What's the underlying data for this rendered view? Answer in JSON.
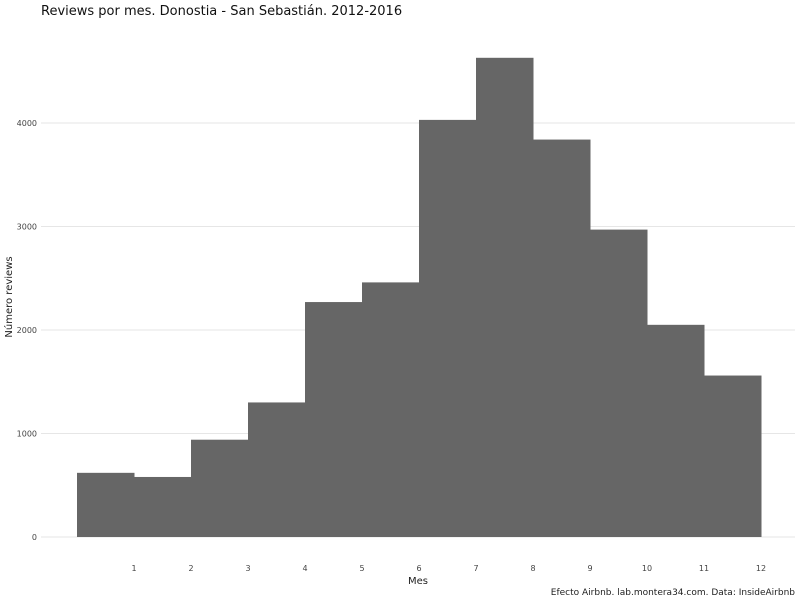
{
  "chart_data": {
    "type": "bar",
    "title": "Reviews por mes. Donostia - San Sebastián. 2012-2016",
    "xlabel": "Mes",
    "ylabel": "Número reviews",
    "caption": "Efecto Airbnb. lab.montera34.com. Data: InsideAirbnb",
    "x_ticks": [
      "1",
      "2",
      "3",
      "4",
      "5",
      "6",
      "7",
      "8",
      "9",
      "10",
      "11",
      "12"
    ],
    "y_ticks": [
      "0",
      "1000",
      "2000",
      "3000",
      "4000"
    ],
    "values": [
      620,
      580,
      940,
      1300,
      2270,
      2460,
      4030,
      4630,
      3840,
      2970,
      2050,
      1560
    ],
    "ylim": [
      0,
      4700
    ],
    "grid": true,
    "bar_color": "#666666",
    "grid_color": "#e6e6e6"
  }
}
